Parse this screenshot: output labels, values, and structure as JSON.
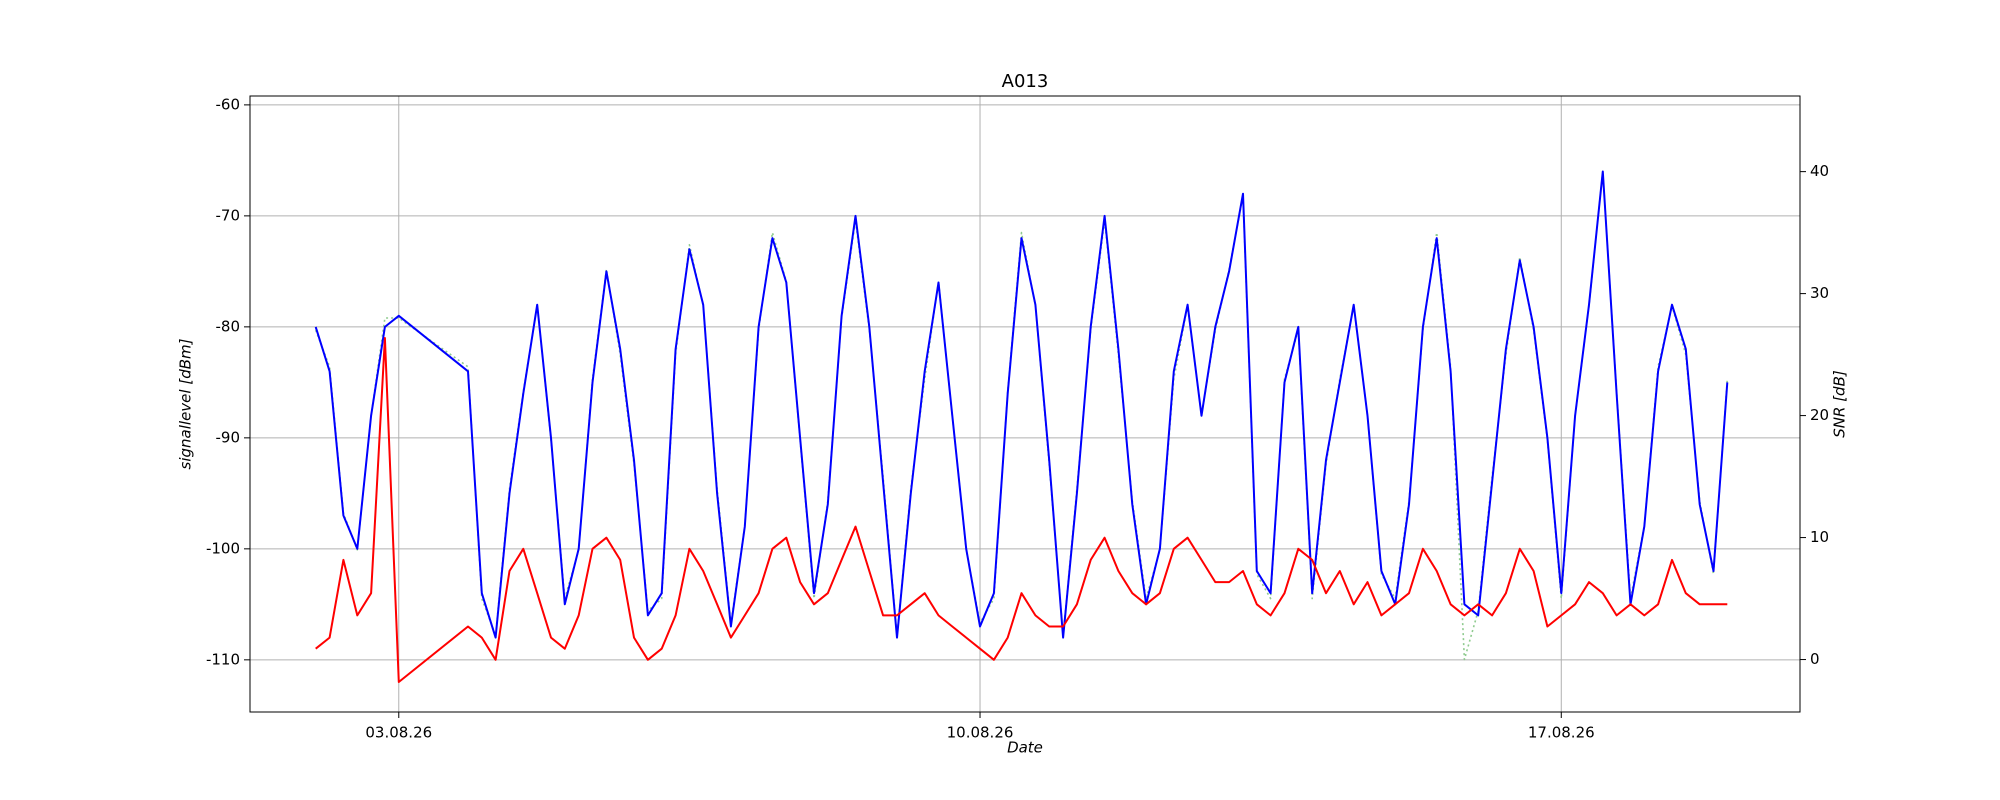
{
  "chart_data": {
    "type": "line",
    "title": "A013",
    "xlabel": "Date",
    "ylabel": "signallevel [dBm]",
    "y2label": "SNR [dB]",
    "x": [
      "2026-08-02T00:00",
      "2026-08-02T04:00",
      "2026-08-02T08:00",
      "2026-08-02T12:00",
      "2026-08-02T16:00",
      "2026-08-02T20:00",
      "2026-08-03T00:00",
      "2026-08-03T20:00",
      "2026-08-04T00:00",
      "2026-08-04T04:00",
      "2026-08-04T08:00",
      "2026-08-04T12:00",
      "2026-08-04T16:00",
      "2026-08-04T20:00",
      "2026-08-05T00:00",
      "2026-08-05T04:00",
      "2026-08-05T08:00",
      "2026-08-05T12:00",
      "2026-08-05T16:00",
      "2026-08-05T20:00",
      "2026-08-06T00:00",
      "2026-08-06T04:00",
      "2026-08-06T08:00",
      "2026-08-06T12:00",
      "2026-08-06T16:00",
      "2026-08-06T20:00",
      "2026-08-07T00:00",
      "2026-08-07T04:00",
      "2026-08-07T08:00",
      "2026-08-07T12:00",
      "2026-08-07T16:00",
      "2026-08-07T20:00",
      "2026-08-08T00:00",
      "2026-08-08T04:00",
      "2026-08-08T08:00",
      "2026-08-08T12:00",
      "2026-08-08T16:00",
      "2026-08-08T20:00",
      "2026-08-09T00:00",
      "2026-08-09T04:00",
      "2026-08-09T08:00",
      "2026-08-09T12:00",
      "2026-08-09T16:00",
      "2026-08-09T20:00",
      "2026-08-10T00:00",
      "2026-08-10T04:00",
      "2026-08-10T08:00",
      "2026-08-10T12:00",
      "2026-08-10T16:00",
      "2026-08-10T20:00",
      "2026-08-11T00:00",
      "2026-08-11T04:00",
      "2026-08-11T08:00",
      "2026-08-11T12:00",
      "2026-08-11T16:00",
      "2026-08-11T20:00",
      "2026-08-12T00:00",
      "2026-08-12T04:00",
      "2026-08-12T08:00",
      "2026-08-12T12:00",
      "2026-08-12T16:00",
      "2026-08-12T20:00",
      "2026-08-13T00:00",
      "2026-08-13T04:00",
      "2026-08-13T08:00",
      "2026-08-13T12:00",
      "2026-08-13T16:00",
      "2026-08-13T20:00",
      "2026-08-14T00:00",
      "2026-08-14T04:00",
      "2026-08-14T08:00",
      "2026-08-14T12:00",
      "2026-08-14T16:00",
      "2026-08-14T20:00",
      "2026-08-15T00:00",
      "2026-08-15T04:00",
      "2026-08-15T08:00",
      "2026-08-15T12:00",
      "2026-08-15T16:00",
      "2026-08-15T20:00",
      "2026-08-16T00:00",
      "2026-08-16T04:00",
      "2026-08-16T08:00",
      "2026-08-16T12:00",
      "2026-08-16T16:00",
      "2026-08-16T20:00",
      "2026-08-17T00:00",
      "2026-08-17T04:00",
      "2026-08-17T08:00",
      "2026-08-17T12:00",
      "2026-08-17T16:00",
      "2026-08-17T20:00",
      "2026-08-18T00:00",
      "2026-08-18T04:00",
      "2026-08-18T08:00",
      "2026-08-18T12:00",
      "2026-08-18T16:00",
      "2026-08-18T20:00",
      "2026-08-19T00:00"
    ],
    "series": [
      {
        "color": "#8fcb8f",
        "linestyle": "dotted",
        "axis": "y2",
        "values": [
          27,
          24,
          12,
          9,
          20,
          28,
          28,
          24,
          5,
          2,
          14,
          22,
          29,
          18,
          5,
          9,
          23,
          32,
          25,
          16,
          4,
          5,
          25,
          34,
          29,
          14,
          3,
          11,
          27,
          35,
          31,
          18,
          5,
          13,
          28,
          36,
          27,
          15,
          2,
          14,
          23,
          31,
          20,
          9,
          3,
          5,
          22,
          35,
          29,
          16,
          2,
          14,
          27,
          36,
          25,
          13,
          5,
          9,
          23,
          29,
          20,
          27,
          32,
          38,
          7,
          5,
          23,
          27,
          5,
          16,
          23,
          29,
          20,
          7,
          5,
          13,
          27,
          35,
          24,
          0,
          4,
          15,
          25,
          33,
          27,
          18,
          5,
          20,
          29,
          40,
          22,
          5,
          11,
          24,
          29,
          25,
          13,
          7,
          23
        ]
      },
      {
        "color": "#0000ff",
        "linestyle": "solid",
        "axis": "y",
        "values": [
          -80,
          -84,
          -97,
          -100,
          -88,
          -80,
          -79,
          -84,
          -104,
          -108,
          -95,
          -86,
          -78,
          -90,
          -105,
          -100,
          -85,
          -75,
          -82,
          -92,
          -106,
          -104,
          -82,
          -73,
          -78,
          -95,
          -107,
          -98,
          -80,
          -72,
          -76,
          -90,
          -104,
          -96,
          -79,
          -70,
          -80,
          -94,
          -108,
          -95,
          -84,
          -76,
          -88,
          -100,
          -107,
          -104,
          -86,
          -72,
          -78,
          -92,
          -108,
          -95,
          -80,
          -70,
          -82,
          -96,
          -105,
          -100,
          -84,
          -78,
          -88,
          -80,
          -75,
          -68,
          -102,
          -104,
          -85,
          -80,
          -104,
          -92,
          -85,
          -78,
          -88,
          -102,
          -105,
          -96,
          -80,
          -72,
          -84,
          -105,
          -106,
          -94,
          -82,
          -74,
          -80,
          -90,
          -104,
          -88,
          -78,
          -66,
          -86,
          -105,
          -98,
          -84,
          -78,
          -82,
          -96,
          -102,
          -85
        ]
      },
      {
        "color": "#ff0000",
        "linestyle": "solid",
        "axis": "y",
        "values": [
          -109,
          -108,
          -101,
          -106,
          -104,
          -81,
          -112,
          -107,
          -108,
          -110,
          -102,
          -100,
          -104,
          -108,
          -109,
          -106,
          -100,
          -99,
          -101,
          -108,
          -110,
          -109,
          -106,
          -100,
          -102,
          -105,
          -108,
          -106,
          -104,
          -100,
          -99,
          -103,
          -105,
          -104,
          -101,
          -98,
          -102,
          -106,
          -106,
          -105,
          -104,
          -106,
          -107,
          -108,
          -109,
          -110,
          -108,
          -104,
          -106,
          -107,
          -107,
          -105,
          -101,
          -99,
          -102,
          -104,
          -105,
          -104,
          -100,
          -99,
          -101,
          -103,
          -103,
          -102,
          -105,
          -106,
          -104,
          -100,
          -101,
          -104,
          -102,
          -105,
          -103,
          -106,
          -105,
          -104,
          -100,
          -102,
          -105,
          -106,
          -105,
          -106,
          -104,
          -100,
          -102,
          -107,
          -106,
          -105,
          -103,
          -104,
          -106,
          -105,
          -106,
          -105,
          -101,
          -104,
          -105,
          -105,
          -105
        ]
      }
    ],
    "xlim": [
      "2026-08-01T05:00",
      "2026-08-19T21:00"
    ],
    "xticks": [
      {
        "value": "2026-08-03T00:00",
        "label": "03.08.26"
      },
      {
        "value": "2026-08-10T00:00",
        "label": "10.08.26"
      },
      {
        "value": "2026-08-17T00:00",
        "label": "17.08.26"
      }
    ],
    "ylim": [
      -114.7,
      -59.2
    ],
    "yticks": [
      -60,
      -70,
      -80,
      -90,
      -100,
      -110
    ],
    "y2lim": [
      -4.3,
      46.2
    ],
    "y2ticks": [
      0,
      10,
      20,
      30,
      40
    ],
    "grid": true
  }
}
